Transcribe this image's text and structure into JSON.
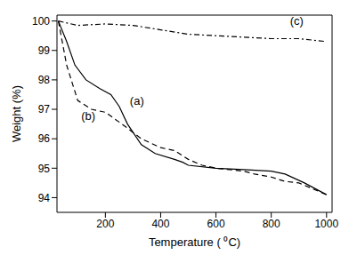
{
  "chart_data": {
    "type": "line",
    "xlabel": "Temperature ( ⁰C)",
    "ylabel": "Weight (%)",
    "xlim": [
      25,
      1020
    ],
    "xticks": [
      200,
      400,
      600,
      800,
      1000
    ],
    "ylim": [
      93.5,
      100.2
    ],
    "yticks": [
      94,
      95,
      96,
      97,
      98,
      99,
      100
    ],
    "grid": false,
    "series": [
      {
        "name": "(a)",
        "color": "#000000",
        "line_style": "solid",
        "x": [
          30,
          60,
          90,
          130,
          180,
          220,
          250,
          280,
          330,
          380,
          450,
          480,
          500,
          600,
          700,
          800,
          850,
          920,
          1000
        ],
        "values": [
          100,
          99.3,
          98.5,
          98.0,
          97.7,
          97.5,
          97.1,
          96.5,
          95.8,
          95.5,
          95.3,
          95.2,
          95.1,
          95.0,
          94.95,
          94.9,
          94.8,
          94.5,
          94.1
        ]
      },
      {
        "name": "(b)",
        "color": "#000000",
        "line_style": "dashed",
        "x": [
          30,
          60,
          100,
          150,
          200,
          260,
          330,
          400,
          450,
          500,
          550,
          600,
          700,
          740,
          800,
          850,
          900,
          950,
          1000
        ],
        "values": [
          100,
          98.5,
          97.3,
          97.0,
          96.9,
          96.5,
          96.0,
          95.7,
          95.6,
          95.3,
          95.1,
          95.0,
          94.9,
          94.8,
          94.7,
          94.55,
          94.5,
          94.3,
          94.1
        ]
      },
      {
        "name": "(c)",
        "color": "#000000",
        "line_style": "dashdot",
        "x": [
          30,
          100,
          200,
          300,
          400,
          500,
          600,
          700,
          800,
          900,
          1000
        ],
        "values": [
          100,
          99.85,
          99.9,
          99.85,
          99.7,
          99.55,
          99.5,
          99.45,
          99.4,
          99.4,
          99.3
        ]
      }
    ]
  }
}
